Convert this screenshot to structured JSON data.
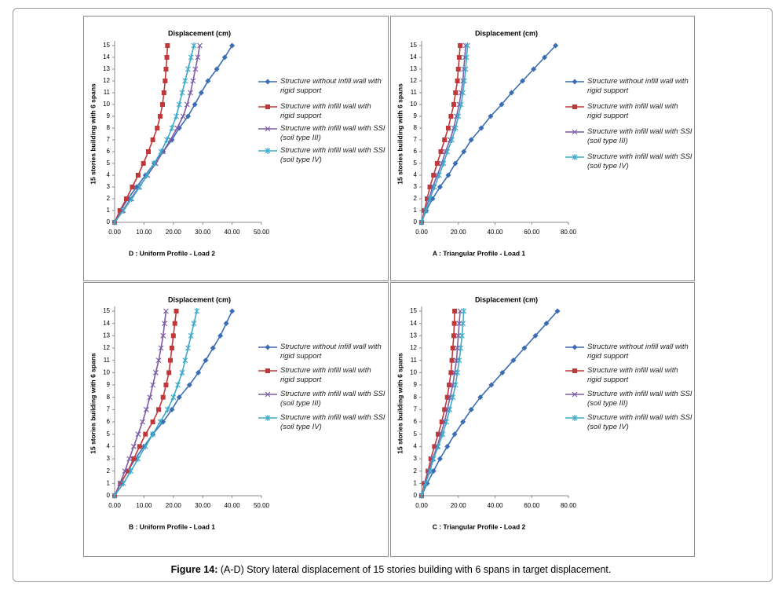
{
  "caption": {
    "label": "Figure 14:",
    "text": "(A-D) Story lateral displacement of 15 stories building with 6 spans in target displacement."
  },
  "chart_data": [
    {
      "type": "line",
      "title": "Displacement (cm)",
      "ylabel": "15 stories building with 6 spans",
      "xlabel": "D : Uniform Profile - Load 2",
      "categories": [
        0,
        1,
        2,
        3,
        4,
        5,
        6,
        7,
        8,
        9,
        10,
        11,
        12,
        13,
        14,
        15
      ],
      "xlim": [
        0,
        50
      ],
      "xticks": [
        {
          "value": 0,
          "label": "0.00"
        },
        {
          "value": 10,
          "label": "10.00"
        },
        {
          "value": 20,
          "label": "20.00"
        },
        {
          "value": 30,
          "label": "30.00"
        },
        {
          "value": 40,
          "label": "40.00"
        },
        {
          "value": 50,
          "label": "50.00"
        }
      ],
      "series": [
        {
          "name": "Structure without infill wall with rigid support",
          "color": "#3b6db4",
          "values": [
            0,
            2,
            4.5,
            7.5,
            10.5,
            13.5,
            16.5,
            19.5,
            22,
            25,
            27.3,
            29.5,
            31.8,
            34.8,
            37.5,
            40
          ]
        },
        {
          "name": "Structure with infill wall with rigid support",
          "color": "#c0393a",
          "values": [
            0,
            1.8,
            4,
            6,
            8,
            9.8,
            11.5,
            13,
            14.5,
            15.5,
            16.3,
            16.8,
            17.2,
            17.5,
            17.8,
            18
          ]
        },
        {
          "name": "Structure with infill wall with SSI (soil type III)",
          "color": "#7d5ba6",
          "values": [
            0,
            2.7,
            5.5,
            8.3,
            11.2,
            14,
            16.5,
            19,
            21.3,
            23.3,
            24.7,
            25.8,
            26.7,
            27.5,
            28.3,
            29
          ]
        },
        {
          "name": "Structure with infill wall with SSI (soil type IV)",
          "color": "#3fa9c8",
          "values": [
            0,
            3,
            5.8,
            8.5,
            11,
            13.5,
            15.8,
            17.8,
            19.5,
            21,
            22,
            23,
            24,
            25,
            26,
            27
          ]
        }
      ]
    },
    {
      "type": "line",
      "title": "Displacement (cm)",
      "ylabel": "15 stories building with 6 spans",
      "xlabel": "A : Triangular Profile - Load 1",
      "categories": [
        0,
        1,
        2,
        3,
        4,
        5,
        6,
        7,
        8,
        9,
        10,
        11,
        12,
        13,
        14,
        15
      ],
      "xlim": [
        0,
        80
      ],
      "xticks": [
        {
          "value": 0,
          "label": "0.00"
        },
        {
          "value": 20,
          "label": "20.00"
        },
        {
          "value": 40,
          "label": "40.00"
        },
        {
          "value": 60,
          "label": "60.00"
        },
        {
          "value": 80,
          "label": "80.00"
        }
      ],
      "series": [
        {
          "name": "Structure without infill wall with rigid support",
          "color": "#3b6db4",
          "values": [
            0,
            2.5,
            6,
            10,
            14.5,
            18.4,
            23,
            27,
            32.5,
            37.6,
            43.6,
            49,
            55,
            61,
            67,
            73
          ]
        },
        {
          "name": "Structure with infill wall with rigid support",
          "color": "#c0393a",
          "values": [
            0,
            1.5,
            3,
            4.5,
            6.5,
            8.5,
            10.5,
            12.5,
            14.5,
            16,
            17.5,
            18.5,
            19.5,
            20,
            20.5,
            21
          ]
        },
        {
          "name": "Structure with infill wall with SSI (soil type III)",
          "color": "#7d5ba6",
          "values": [
            0,
            2,
            4,
            6,
            8.5,
            11,
            13,
            15.5,
            17.5,
            19,
            20.5,
            21.5,
            22.5,
            23,
            23.5,
            24
          ]
        },
        {
          "name": "Structure with infill wall with SSI (soil type IV)",
          "color": "#3fa9c8",
          "values": [
            0,
            2.3,
            4.5,
            7,
            9.5,
            12,
            14,
            16.5,
            18.5,
            20,
            21.5,
            22.5,
            23.3,
            24,
            24.5,
            25
          ]
        }
      ]
    },
    {
      "type": "line",
      "title": "Displacement (cm)",
      "ylabel": "15 stories building with 6 spans",
      "xlabel": "B : Uniform Profile - Load 1",
      "categories": [
        0,
        1,
        2,
        3,
        4,
        5,
        6,
        7,
        8,
        9,
        10,
        11,
        12,
        13,
        14,
        15
      ],
      "xlim": [
        0,
        50
      ],
      "xticks": [
        {
          "value": 0,
          "label": "0.00"
        },
        {
          "value": 10,
          "label": "10.00"
        },
        {
          "value": 20,
          "label": "20.00"
        },
        {
          "value": 30,
          "label": "30.00"
        },
        {
          "value": 40,
          "label": "40.00"
        },
        {
          "value": 50,
          "label": "50.00"
        }
      ],
      "series": [
        {
          "name": "Structure without infill wall with rigid support",
          "color": "#3b6db4",
          "values": [
            0,
            2,
            4.5,
            7,
            10,
            13,
            16.5,
            19.5,
            22,
            25.5,
            28.5,
            31,
            33.5,
            36,
            38,
            40
          ]
        },
        {
          "name": "Structure with infill wall with rigid support",
          "color": "#c0393a",
          "values": [
            0,
            2,
            4.5,
            6.5,
            8.5,
            10.5,
            13,
            15,
            16.5,
            17.5,
            18.5,
            19,
            19.5,
            20,
            20.5,
            21
          ]
        },
        {
          "name": "Structure with infill wall with SSI (soil type III)",
          "color": "#7d5ba6",
          "values": [
            0,
            1.8,
            3.5,
            5,
            6.5,
            8,
            9.5,
            10.8,
            12,
            13,
            14,
            15,
            15.8,
            16.5,
            17,
            17.5
          ]
        },
        {
          "name": "Structure with infill wall with SSI (soil type IV)",
          "color": "#3fa9c8",
          "values": [
            0,
            3,
            5.5,
            8,
            10.5,
            13,
            15.5,
            18,
            20,
            21.5,
            23,
            24,
            25,
            26,
            27,
            28
          ]
        }
      ]
    },
    {
      "type": "line",
      "title": "Displacement (cm)",
      "ylabel": "15 stories building with 6 spans",
      "xlabel": "C : Triangular Profile - Load 2",
      "categories": [
        0,
        1,
        2,
        3,
        4,
        5,
        6,
        7,
        8,
        9,
        10,
        11,
        12,
        13,
        14,
        15
      ],
      "xlim": [
        0,
        80
      ],
      "xticks": [
        {
          "value": 0,
          "label": "0.00"
        },
        {
          "value": 20,
          "label": "20.00"
        },
        {
          "value": 40,
          "label": "40.00"
        },
        {
          "value": 60,
          "label": "60.00"
        },
        {
          "value": 80,
          "label": "80.00"
        }
      ],
      "series": [
        {
          "name": "Structure without infill wall with rigid support",
          "color": "#3b6db4",
          "values": [
            0,
            3,
            6.5,
            10,
            14,
            18,
            22.5,
            27,
            32,
            38,
            44,
            50,
            56,
            62,
            68,
            74
          ]
        },
        {
          "name": "Structure with infill wall with rigid support",
          "color": "#c0393a",
          "values": [
            0,
            1.5,
            3.5,
            5,
            7,
            9,
            11,
            12.5,
            14,
            15,
            16,
            16.5,
            17,
            17.5,
            17.8,
            18
          ]
        },
        {
          "name": "Structure with infill wall with SSI (soil type III)",
          "color": "#7d5ba6",
          "values": [
            0,
            2,
            4,
            6,
            8.5,
            10.5,
            12.5,
            14,
            15.5,
            17,
            18,
            19,
            19.5,
            20,
            20.5,
            21
          ]
        },
        {
          "name": "Structure with infill wall with SSI (soil type IV)",
          "color": "#3fa9c8",
          "values": [
            0,
            2.2,
            4.5,
            6.5,
            9,
            11.5,
            13.5,
            15.3,
            17,
            18.5,
            19.5,
            20.5,
            21.3,
            22,
            22.5,
            23
          ]
        }
      ]
    }
  ]
}
